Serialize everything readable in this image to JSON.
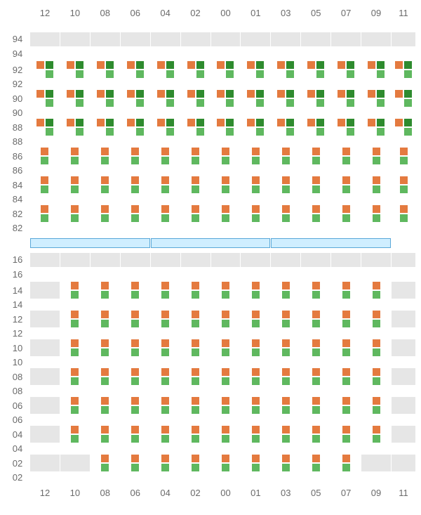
{
  "colors": {
    "orange": "#e47a3f",
    "green": "#5fb85f",
    "darkgreen": "#2e8b2e",
    "cell_inactive": "#e6e6e6",
    "cell_active": "#ffffff",
    "divider_fill": "#cfeeff",
    "divider_border": "#5aa8d8",
    "label": "#6a6a6a"
  },
  "columns": [
    "12",
    "10",
    "08",
    "06",
    "04",
    "02",
    "00",
    "01",
    "03",
    "05",
    "07",
    "09",
    "11"
  ],
  "top": {
    "row_labels": [
      "94",
      "92",
      "90",
      "88",
      "86",
      "84",
      "82"
    ],
    "patterns": {
      "A": {
        "active": true,
        "count": 4,
        "colors": [
          "orange",
          "darkgreen",
          "blank",
          "green"
        ]
      },
      "B": {
        "active": true,
        "count": 2,
        "colors": [
          "orange",
          "green"
        ]
      },
      "X": {
        "active": false
      }
    },
    "grid": [
      [
        "X",
        "X",
        "X",
        "X",
        "X",
        "X",
        "X",
        "X",
        "X",
        "X",
        "X",
        "X",
        "X"
      ],
      [
        "A",
        "A",
        "A",
        "A",
        "A",
        "A",
        "A",
        "A",
        "A",
        "A",
        "A",
        "A",
        "A"
      ],
      [
        "A",
        "A",
        "A",
        "A",
        "A",
        "A",
        "A",
        "A",
        "A",
        "A",
        "A",
        "A",
        "A"
      ],
      [
        "A",
        "A",
        "A",
        "A",
        "A",
        "A",
        "A",
        "A",
        "A",
        "A",
        "A",
        "A",
        "A"
      ],
      [
        "B",
        "B",
        "B",
        "B",
        "B",
        "B",
        "B",
        "B",
        "B",
        "B",
        "B",
        "B",
        "B"
      ],
      [
        "B",
        "B",
        "B",
        "B",
        "B",
        "B",
        "B",
        "B",
        "B",
        "B",
        "B",
        "B",
        "B"
      ],
      [
        "B",
        "B",
        "B",
        "B",
        "B",
        "B",
        "B",
        "B",
        "B",
        "B",
        "B",
        "B",
        "B"
      ]
    ]
  },
  "bottom": {
    "row_labels": [
      "16",
      "14",
      "12",
      "10",
      "08",
      "06",
      "04",
      "02"
    ],
    "patterns": {
      "B": {
        "active": true,
        "count": 2,
        "colors": [
          "orange",
          "green"
        ]
      },
      "X": {
        "active": false
      }
    },
    "grid": [
      [
        "X",
        "X",
        "X",
        "X",
        "X",
        "X",
        "X",
        "X",
        "X",
        "X",
        "X",
        "X",
        "X"
      ],
      [
        "X",
        "B",
        "B",
        "B",
        "B",
        "B",
        "B",
        "B",
        "B",
        "B",
        "B",
        "B",
        "X"
      ],
      [
        "X",
        "B",
        "B",
        "B",
        "B",
        "B",
        "B",
        "B",
        "B",
        "B",
        "B",
        "B",
        "X"
      ],
      [
        "X",
        "B",
        "B",
        "B",
        "B",
        "B",
        "B",
        "B",
        "B",
        "B",
        "B",
        "B",
        "X"
      ],
      [
        "X",
        "B",
        "B",
        "B",
        "B",
        "B",
        "B",
        "B",
        "B",
        "B",
        "B",
        "B",
        "X"
      ],
      [
        "X",
        "B",
        "B",
        "B",
        "B",
        "B",
        "B",
        "B",
        "B",
        "B",
        "B",
        "B",
        "X"
      ],
      [
        "X",
        "B",
        "B",
        "B",
        "B",
        "B",
        "B",
        "B",
        "B",
        "B",
        "B",
        "B",
        "X"
      ],
      [
        "X",
        "X",
        "B",
        "B",
        "B",
        "B",
        "B",
        "B",
        "B",
        "B",
        "B",
        "X",
        "X"
      ]
    ]
  },
  "divider_segments": 3
}
